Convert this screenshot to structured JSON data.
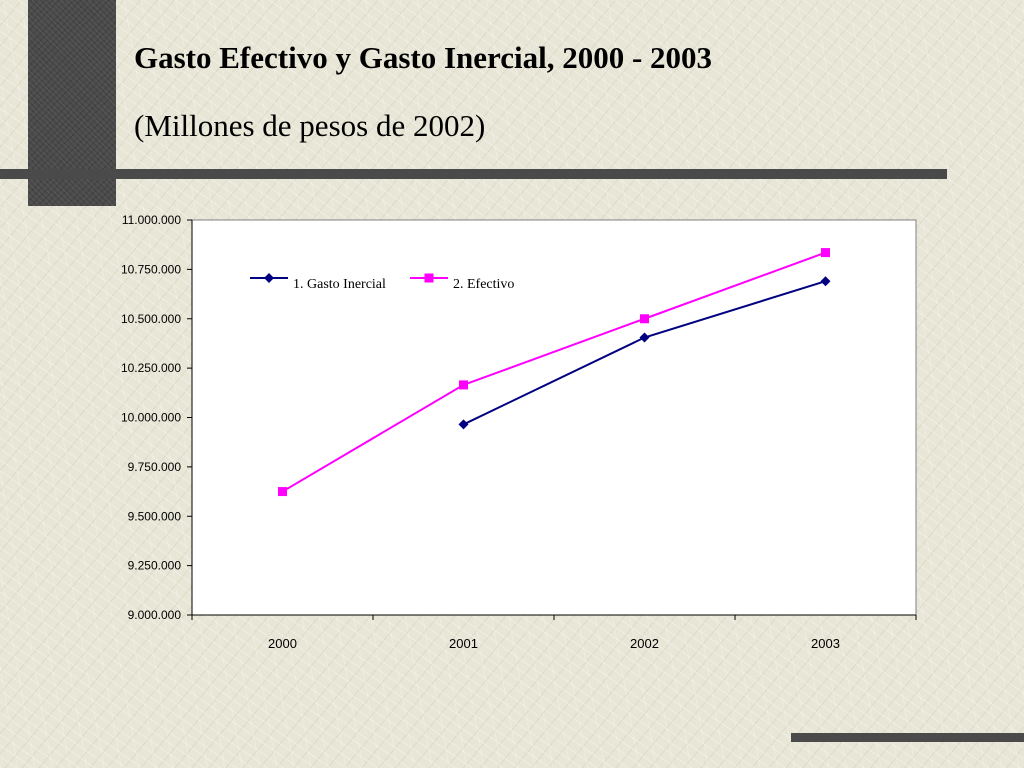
{
  "slide": {
    "title": "Gasto Efectivo y Gasto Inercial, 2000 - 2003",
    "subtitle": "(Millones de pesos de 2002)"
  },
  "chart_data": {
    "type": "line",
    "categories": [
      "2000",
      "2001",
      "2002",
      "2003"
    ],
    "ylim": [
      9000000,
      11000000
    ],
    "yticks": [
      "11.000.000",
      "10.750.000",
      "10.500.000",
      "10.250.000",
      "10.000.000",
      "9.750.000",
      "9.500.000",
      "9.250.000",
      "9.000.000"
    ],
    "ytick_values": [
      11000000,
      10750000,
      10500000,
      10250000,
      10000000,
      9750000,
      9500000,
      9250000,
      9000000
    ],
    "grid": false,
    "legend_position": "top-left",
    "series": [
      {
        "name": "1. Gasto Inercial",
        "color": "#000080",
        "marker": "diamond",
        "values": [
          null,
          9965000,
          10405000,
          10690000
        ]
      },
      {
        "name": "2. Efectivo",
        "color": "#ff00ff",
        "marker": "square",
        "values": [
          9625000,
          10165000,
          10500000,
          10835000
        ]
      }
    ]
  }
}
